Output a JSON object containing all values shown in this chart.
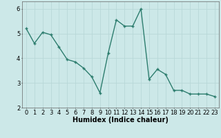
{
  "x": [
    0,
    1,
    2,
    3,
    4,
    5,
    6,
    7,
    8,
    9,
    10,
    11,
    12,
    13,
    14,
    15,
    16,
    17,
    18,
    19,
    20,
    21,
    22,
    23
  ],
  "y": [
    5.2,
    4.6,
    5.05,
    4.95,
    4.45,
    3.95,
    3.85,
    3.6,
    3.25,
    2.6,
    4.2,
    5.55,
    5.3,
    5.3,
    6.0,
    3.15,
    3.55,
    3.35,
    2.7,
    2.7,
    2.55,
    2.55,
    2.55,
    2.45
  ],
  "line_color": "#2d7d6e",
  "marker": "+",
  "marker_size": 3,
  "marker_lw": 1.0,
  "line_width": 1.0,
  "bg_color": "#cce8e8",
  "grid_color": "#b8d8d8",
  "xlabel": "Humidex (Indice chaleur)",
  "xlim": [
    -0.5,
    23.5
  ],
  "ylim": [
    2.0,
    6.3
  ],
  "yticks": [
    2,
    3,
    4,
    5,
    6
  ],
  "xticks": [
    0,
    1,
    2,
    3,
    4,
    5,
    6,
    7,
    8,
    9,
    10,
    11,
    12,
    13,
    14,
    15,
    16,
    17,
    18,
    19,
    20,
    21,
    22,
    23
  ],
  "label_fontsize": 7,
  "tick_fontsize": 6
}
